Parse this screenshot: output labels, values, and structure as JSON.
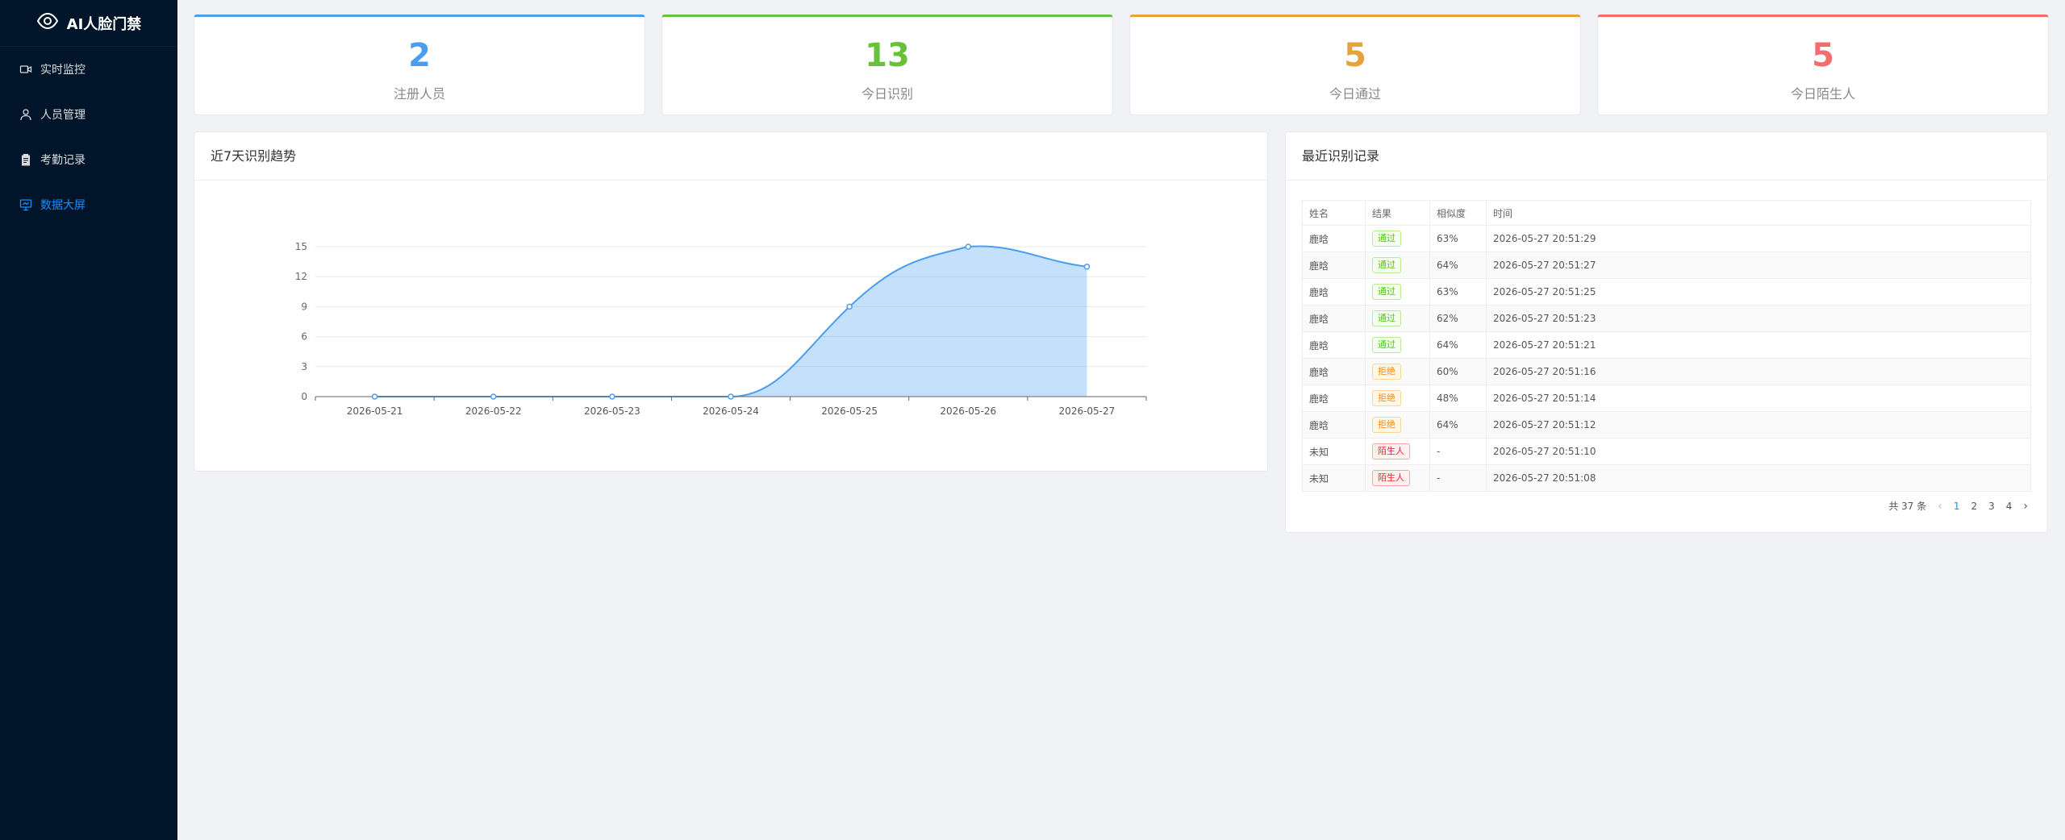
{
  "app": {
    "title": "AI人脸门禁"
  },
  "sidebar": {
    "items": [
      {
        "label": "实时监控",
        "icon": "video-icon"
      },
      {
        "label": "人员管理",
        "icon": "user-icon"
      },
      {
        "label": "考勤记录",
        "icon": "clipboard-icon"
      },
      {
        "label": "数据大屏",
        "icon": "dashboard-icon",
        "active": true
      }
    ],
    "active_color": "#1890ff"
  },
  "stats": [
    {
      "value": "2",
      "label": "注册人员",
      "color": "#4a9ef0"
    },
    {
      "value": "13",
      "label": "今日识别",
      "color": "#67c23a"
    },
    {
      "value": "5",
      "label": "今日通过",
      "color": "#e6a23c"
    },
    {
      "value": "5",
      "label": "今日陌生人",
      "color": "#f56c6c"
    }
  ],
  "trend": {
    "title": "近7天识别趋势"
  },
  "chart_data": {
    "type": "area",
    "title": "近7天识别趋势",
    "categories": [
      "2026-05-21",
      "2026-05-22",
      "2026-05-23",
      "2026-05-24",
      "2026-05-25",
      "2026-05-26",
      "2026-05-27"
    ],
    "values": [
      0,
      0,
      0,
      0,
      9,
      15,
      13
    ],
    "ylim": [
      0,
      15
    ],
    "yticks": [
      0,
      3,
      6,
      9,
      12,
      15
    ],
    "grid": true,
    "smooth": true,
    "color": "#4a9ef0"
  },
  "records": {
    "title": "最近识别记录",
    "columns": [
      "姓名",
      "结果",
      "相似度",
      "时间"
    ],
    "rows": [
      {
        "name": "鹿晗",
        "result": "通过",
        "type": "pass",
        "similarity": "63%",
        "time": "2026-05-27 20:51:29"
      },
      {
        "name": "鹿晗",
        "result": "通过",
        "type": "pass",
        "similarity": "64%",
        "time": "2026-05-27 20:51:27"
      },
      {
        "name": "鹿晗",
        "result": "通过",
        "type": "pass",
        "similarity": "63%",
        "time": "2026-05-27 20:51:25"
      },
      {
        "name": "鹿晗",
        "result": "通过",
        "type": "pass",
        "similarity": "62%",
        "time": "2026-05-27 20:51:23"
      },
      {
        "name": "鹿晗",
        "result": "通过",
        "type": "pass",
        "similarity": "64%",
        "time": "2026-05-27 20:51:21"
      },
      {
        "name": "鹿晗",
        "result": "拒绝",
        "type": "reject",
        "similarity": "60%",
        "time": "2026-05-27 20:51:16"
      },
      {
        "name": "鹿晗",
        "result": "拒绝",
        "type": "reject",
        "similarity": "48%",
        "time": "2026-05-27 20:51:14"
      },
      {
        "name": "鹿晗",
        "result": "拒绝",
        "type": "reject",
        "similarity": "64%",
        "time": "2026-05-27 20:51:12"
      },
      {
        "name": "未知",
        "result": "陌生人",
        "type": "stranger",
        "similarity": "-",
        "time": "2026-05-27 20:51:10"
      },
      {
        "name": "未知",
        "result": "陌生人",
        "type": "stranger",
        "similarity": "-",
        "time": "2026-05-27 20:51:08"
      }
    ],
    "tag_colors": {
      "pass": {
        "text": "#52c41a",
        "bg": "#f6ffed",
        "border": "#b7eb8f"
      },
      "reject": {
        "text": "#fa8c16",
        "bg": "#fff7e6",
        "border": "#ffd591"
      },
      "stranger": {
        "text": "#f5222d",
        "bg": "#fff1f0",
        "border": "#ffa39e"
      }
    }
  },
  "pagination": {
    "total": "共 37 条",
    "pages": [
      "1",
      "2",
      "3",
      "4"
    ],
    "current": "1"
  }
}
